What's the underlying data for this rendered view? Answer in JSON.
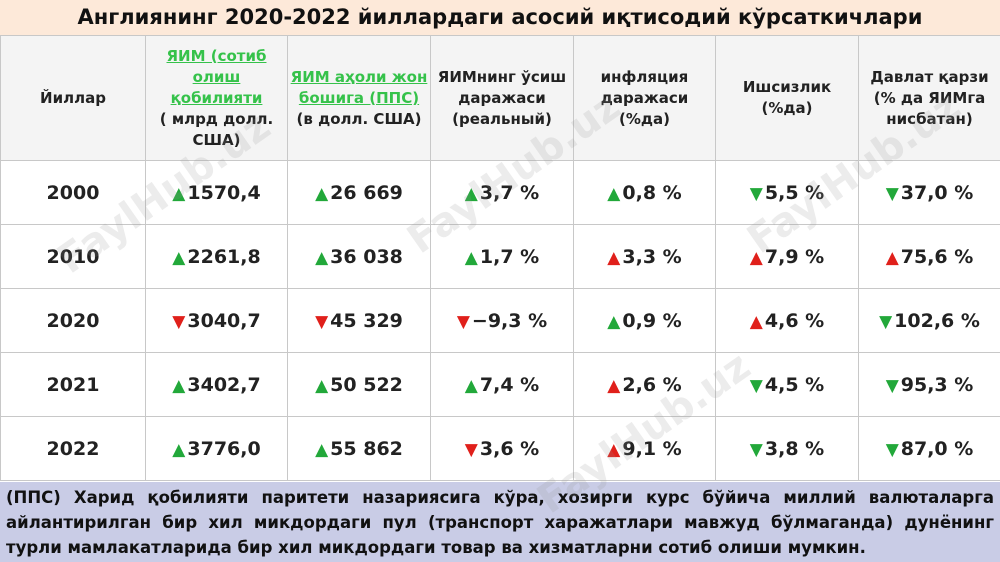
{
  "header": {
    "title": "Англиянинг 2020-2022 йиллардаги асосий иқтисодий кўрсаткичлари"
  },
  "table": {
    "columns": [
      {
        "main": "Йиллар"
      },
      {
        "link": "ЯИМ (сотиб олиш қобилияти",
        "main": "( млрд долл. США)"
      },
      {
        "link": "ЯИМ аҳоли жон бошига (ППС)",
        "main": "(в долл. США)"
      },
      {
        "main": "ЯИМнинг ўсиш даражаси (реальный)"
      },
      {
        "main": "инфляция даражаси (%да)"
      },
      {
        "main": "Ишсизлик (%да)"
      },
      {
        "main": "Давлат қарзи (% да ЯИМга нисбатан)"
      }
    ],
    "rows": [
      {
        "year": "2000",
        "cells": [
          {
            "arrow": "▲",
            "arrow_color": "#22a83a",
            "value": "1570,4"
          },
          {
            "arrow": "▲",
            "arrow_color": "#22a83a",
            "value": "26 669"
          },
          {
            "arrow": "▲",
            "arrow_color": "#22a83a",
            "value": "3,7 %"
          },
          {
            "arrow": "▲",
            "arrow_color": "#22a83a",
            "value": "0,8 %"
          },
          {
            "arrow": "▼",
            "arrow_color": "#22a83a",
            "value": "5,5 %"
          },
          {
            "arrow": "▼",
            "arrow_color": "#22a83a",
            "value": "37,0 %"
          }
        ]
      },
      {
        "year": "2010",
        "cells": [
          {
            "arrow": "▲",
            "arrow_color": "#22a83a",
            "value": "2261,8"
          },
          {
            "arrow": "▲",
            "arrow_color": "#22a83a",
            "value": "36 038"
          },
          {
            "arrow": "▲",
            "arrow_color": "#22a83a",
            "value": "1,7 %"
          },
          {
            "arrow": "▲",
            "arrow_color": "#e0201b",
            "value": "3,3 %"
          },
          {
            "arrow": "▲",
            "arrow_color": "#e0201b",
            "value": "7,9 %"
          },
          {
            "arrow": "▲",
            "arrow_color": "#e0201b",
            "value": "75,6 %"
          }
        ]
      },
      {
        "year": "2020",
        "cells": [
          {
            "arrow": "▼",
            "arrow_color": "#e0201b",
            "value": "3040,7"
          },
          {
            "arrow": "▼",
            "arrow_color": "#e0201b",
            "value": "45 329"
          },
          {
            "arrow": "▼",
            "arrow_color": "#e0201b",
            "value": "−9,3 %"
          },
          {
            "arrow": "▲",
            "arrow_color": "#22a83a",
            "value": "0,9 %"
          },
          {
            "arrow": "▲",
            "arrow_color": "#e0201b",
            "value": "4,6 %"
          },
          {
            "arrow": "▼",
            "arrow_color": "#22a83a",
            "value": "102,6 %"
          }
        ]
      },
      {
        "year": "2021",
        "cells": [
          {
            "arrow": "▲",
            "arrow_color": "#22a83a",
            "value": "3402,7"
          },
          {
            "arrow": "▲",
            "arrow_color": "#22a83a",
            "value": "50 522"
          },
          {
            "arrow": "▲",
            "arrow_color": "#22a83a",
            "value": "7,4 %"
          },
          {
            "arrow": "▲",
            "arrow_color": "#e0201b",
            "value": "2,6 %"
          },
          {
            "arrow": "▼",
            "arrow_color": "#22a83a",
            "value": "4,5 %"
          },
          {
            "arrow": "▼",
            "arrow_color": "#22a83a",
            "value": "95,3 %"
          }
        ]
      },
      {
        "year": "2022",
        "cells": [
          {
            "arrow": "▲",
            "arrow_color": "#22a83a",
            "value": "3776,0"
          },
          {
            "arrow": "▲",
            "arrow_color": "#22a83a",
            "value": "55 862"
          },
          {
            "arrow": "▼",
            "arrow_color": "#e0201b",
            "value": "3,6 %"
          },
          {
            "arrow": "▲",
            "arrow_color": "#e0201b",
            "value": "9,1 %"
          },
          {
            "arrow": "▼",
            "arrow_color": "#22a83a",
            "value": "3,8 %"
          },
          {
            "arrow": "▼",
            "arrow_color": "#22a83a",
            "value": "87,0 %"
          }
        ]
      }
    ]
  },
  "footer": {
    "text": "(ППС) Харид қобилияти паритети назариясига кўра, хозирги курс бўйича миллий валюталарга айлантирилган бир хил микдордаги пул (транспорт харажатлари мавжуд бўлмаганда) дунёнинг турли мамлакатларида бир хил микдордаги товар ва хизматларни сотиб олиши мумкин."
  },
  "watermark": "FaylHub.uz"
}
